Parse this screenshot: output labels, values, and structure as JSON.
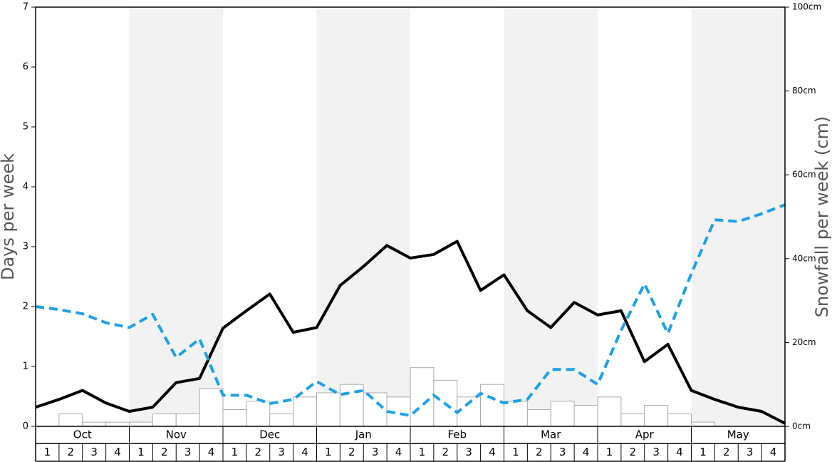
{
  "chart_data": {
    "type": "combo",
    "ylabel": "Days per week",
    "y2label": "Snowfall per week (cm)",
    "months": [
      "Oct",
      "Nov",
      "Dec",
      "Jan",
      "Feb",
      "Mar",
      "Apr",
      "May"
    ],
    "weeks": [
      "1",
      "2",
      "3",
      "4"
    ],
    "shade_color": "#f2f2f2",
    "ylim": [
      0,
      7
    ],
    "yticks": [
      0,
      1,
      2,
      3,
      4,
      5,
      6,
      7
    ],
    "y2lim": [
      0,
      100
    ],
    "y2ticks": [
      {
        "value": 0,
        "label": "0cm"
      },
      {
        "value": 20,
        "label": "20cm"
      },
      {
        "value": 40,
        "label": "40cm"
      },
      {
        "value": 60,
        "label": "60cm"
      },
      {
        "value": 80,
        "label": "80cm"
      },
      {
        "value": 100,
        "label": "100cm"
      }
    ],
    "bars": {
      "axis": "y2",
      "color": "#ffffff",
      "edge": "#aaaaaa",
      "values": [
        0,
        3,
        1,
        1,
        1,
        3,
        3,
        9,
        4,
        6,
        3,
        7,
        8,
        10,
        8,
        7,
        14,
        11,
        7,
        10,
        6,
        4,
        6,
        5,
        7,
        3,
        5,
        3,
        1,
        0,
        0,
        0
      ]
    },
    "series": [
      {
        "color": "#000000",
        "dashed": false,
        "values": [
          0.32,
          0.45,
          0.6,
          0.39,
          0.25,
          0.32,
          0.73,
          0.8,
          1.64,
          1.93,
          2.21,
          1.57,
          1.65,
          2.35,
          2.67,
          3.02,
          2.81,
          2.87,
          3.09,
          2.27,
          2.53,
          1.93,
          1.65,
          2.07,
          1.86,
          1.93,
          1.08,
          1.37,
          0.6,
          0.45,
          0.32,
          0.25,
          0.05
        ]
      },
      {
        "color": "#1ea0e6",
        "dashed": true,
        "values": [
          2.0,
          1.95,
          1.88,
          1.73,
          1.65,
          1.87,
          1.15,
          1.46,
          0.52,
          0.52,
          0.38,
          0.45,
          0.75,
          0.53,
          0.6,
          0.25,
          0.18,
          0.52,
          0.23,
          0.55,
          0.39,
          0.45,
          0.95,
          0.95,
          0.7,
          1.6,
          2.38,
          1.55,
          2.55,
          3.45,
          3.42,
          3.55,
          3.7
        ]
      }
    ]
  }
}
